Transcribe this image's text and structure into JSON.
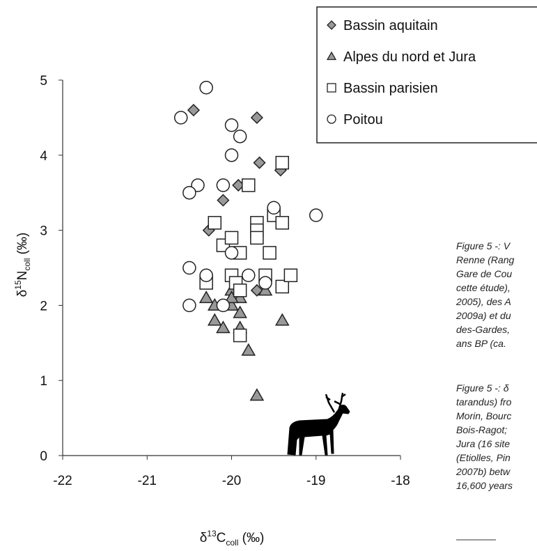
{
  "chart_data": {
    "type": "scatter",
    "x_label": {
      "prefix": "δ",
      "sup": "13",
      "main": "C",
      "sub": "coll",
      "suffix": " (‰)"
    },
    "y_label": {
      "prefix": "δ",
      "sup": "15",
      "main": "N",
      "sub": "coll",
      "suffix": " (‰)"
    },
    "xlim": [
      -22,
      -18
    ],
    "ylim": [
      0,
      5
    ],
    "xticks": [
      -22,
      -21,
      -20,
      -19,
      -18
    ],
    "yticks": [
      0,
      1,
      2,
      3,
      4,
      5
    ],
    "legend_position": "upper right",
    "series": [
      {
        "name": "Bassin aquitain",
        "marker": "diamond",
        "color": "#999999",
        "x": [
          -20.45,
          -19.7,
          -19.67,
          -19.42,
          -19.92,
          -20.1,
          -20.27,
          -19.7
        ],
        "values": [
          4.6,
          4.5,
          3.9,
          3.8,
          3.6,
          3.4,
          3.0,
          2.2
        ]
      },
      {
        "name": "Alpes du nord et Jura",
        "marker": "triangle",
        "color": "#999999",
        "x": [
          -20.3,
          -20.2,
          -20.2,
          -20.1,
          -20.0,
          -20.0,
          -19.9,
          -19.9,
          -19.8,
          -19.9,
          -19.6,
          -19.4,
          -19.7,
          -20.0
        ],
        "values": [
          2.1,
          2.0,
          1.8,
          1.7,
          2.0,
          2.2,
          1.9,
          1.7,
          1.4,
          2.1,
          2.2,
          1.8,
          0.8,
          2.1
        ]
      },
      {
        "name": "Bassin parisien",
        "marker": "square",
        "color": "#ffffff",
        "x": [
          -20.3,
          -20.2,
          -20.1,
          -20.0,
          -19.9,
          -20.0,
          -19.95,
          -19.9,
          -19.9,
          -19.8,
          -19.7,
          -19.7,
          -19.7,
          -19.6,
          -19.55,
          -19.5,
          -19.4,
          -19.4,
          -19.4,
          -19.3
        ],
        "values": [
          2.3,
          3.1,
          2.8,
          2.9,
          2.7,
          2.4,
          2.3,
          2.2,
          1.6,
          3.6,
          3.1,
          3.0,
          2.9,
          2.4,
          2.7,
          3.2,
          3.1,
          3.9,
          2.25,
          2.4
        ]
      },
      {
        "name": "Poitou",
        "marker": "circle",
        "color": "#ffffff",
        "x": [
          -20.3,
          -20.6,
          -20.0,
          -19.9,
          -20.0,
          -20.4,
          -20.5,
          -20.1,
          -19.5,
          -19.0,
          -20.5,
          -20.3,
          -20.0,
          -19.8,
          -19.6,
          -20.5,
          -20.1
        ],
        "values": [
          4.9,
          4.5,
          4.4,
          4.25,
          4.0,
          3.6,
          3.5,
          3.6,
          3.3,
          3.2,
          2.5,
          2.4,
          2.7,
          2.4,
          2.3,
          2.0,
          2.0
        ]
      }
    ]
  },
  "caption_fr": [
    "Figure 5 -: V",
    "Renne (Rang",
    "Gare de Cou",
    "cette étude),",
    "2005), des A",
    "2009a) et du",
    "des-Gardes,",
    "ans BP (ca. "
  ],
  "caption_en": [
    "Figure 5 -: δ",
    "tarandus) fro",
    "Morin, Bourc",
    "Bois-Ragot;",
    "Jura (16 site",
    "(Etiolles, Pin",
    "2007b) betw",
    "16,600 years"
  ]
}
